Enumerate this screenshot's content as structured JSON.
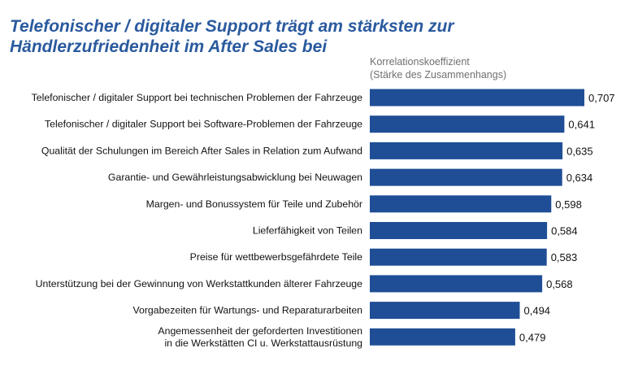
{
  "chart_data": {
    "type": "bar",
    "orientation": "horizontal",
    "title_lines": [
      "Telefonischer / digitaler Support trägt am stärksten zur",
      "Händlerzufriedenheit im After Sales bei"
    ],
    "subtitle_lines": [
      "Korrelationskoeffizient",
      "(Stärke des Zusammenhangs)"
    ],
    "categories": [
      [
        "Telefonischer / digitaler Support bei technischen Problemen der Fahrzeuge"
      ],
      [
        "Telefonischer / digitaler Support bei Software-Problemen der Fahrzeuge"
      ],
      [
        "Qualität der Schulungen im Bereich After Sales in Relation zum Aufwand"
      ],
      [
        "Garantie- und Gewährleistungsabwicklung bei Neuwagen"
      ],
      [
        "Margen- und Bonussystem für Teile und Zubehör"
      ],
      [
        "Lieferfähigkeit von Teilen"
      ],
      [
        "Preise für wettbewerbsgefährdete Teile"
      ],
      [
        "Unterstützung bei der Gewinnung von Werkstattkunden älterer Fahrzeuge"
      ],
      [
        "Vorgabezeiten für Wartungs- und Reparaturarbeiten"
      ],
      [
        "Angemessenheit der geforderten Investitionen",
        "in die Werkstätten CI u. Werkstattausrüstung"
      ]
    ],
    "values": [
      0.707,
      0.641,
      0.635,
      0.634,
      0.598,
      0.584,
      0.583,
      0.568,
      0.494,
      0.479
    ],
    "value_labels": [
      "0,707",
      "0,641",
      "0,635",
      "0,634",
      "0,598",
      "0,584",
      "0,583",
      "0,568",
      "0,494",
      "0,479"
    ],
    "xlim": [
      0,
      0.707
    ],
    "grid": false,
    "bar_color": "#1f4e96"
  }
}
